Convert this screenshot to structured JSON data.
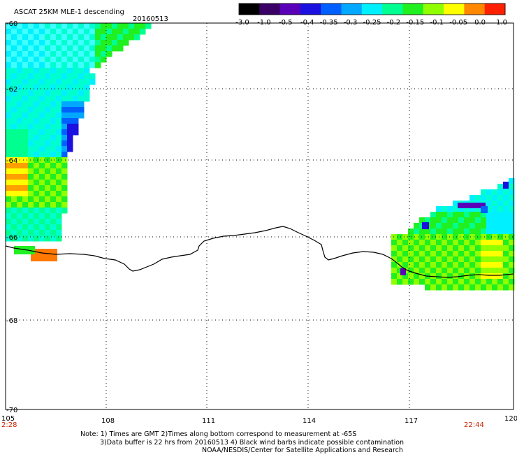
{
  "title": "ASCAT 25KM MLE-1 descending",
  "date": "20160513",
  "colorbar": {
    "ticks": [
      "-3.0",
      "-1.0",
      "-0.5",
      "-0.4",
      "-0.35",
      "-0.3",
      "-0.25",
      "-0.2",
      "-0.15",
      "-0.1",
      "-0.05",
      "0.0",
      "1.0"
    ],
    "colors": [
      "#000000",
      "#3a0066",
      "#5a00b8",
      "#1a10e0",
      "#0060ff",
      "#00a8ff",
      "#00f0ff",
      "#00ff90",
      "#20f020",
      "#90ff00",
      "#ffff00",
      "#ff8800",
      "#ff2000"
    ]
  },
  "map": {
    "lon_range": [
      105,
      120
    ],
    "lat_range": [
      -70,
      -60
    ],
    "lon_ticks": [
      "105",
      "108",
      "111",
      "114",
      "117",
      "120"
    ],
    "lat_ticks": [
      "-60",
      "-62",
      "-64",
      "-66",
      "-68",
      "-70"
    ],
    "start_time": "2:28",
    "end_time": "22:44"
  },
  "notes": {
    "line1": "Note: 1) Times are GMT 2)Times along bottom correspond to measurement at -65S",
    "line2": "3)Data buffer is 22 hrs from 20160513 4) Black wind barbs indicate possible contamination",
    "line3": "NOAA/NESDIS/Center for Satellite Applications and Research"
  }
}
